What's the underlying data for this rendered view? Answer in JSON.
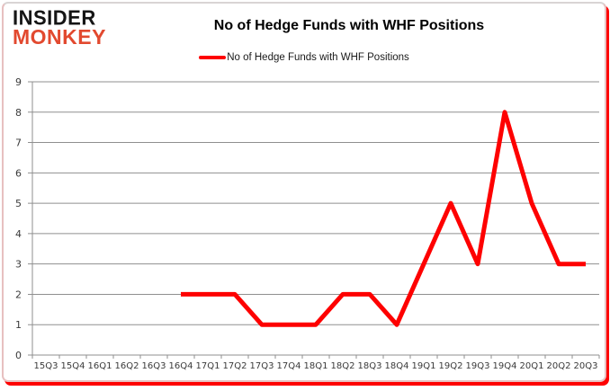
{
  "logo": {
    "line1": "INSIDER",
    "line2": "MONKEY",
    "accent_color": "#e2492f"
  },
  "header": {
    "title": "No of Hedge Funds with WHF Positions"
  },
  "legend": {
    "label": "No of Hedge Funds with WHF Positions",
    "swatch_color": "#fe0000"
  },
  "colors": {
    "series_red": "#fe0000",
    "grid_gray": "#8f8f8f",
    "frame_shadow_red": "#fe0000"
  },
  "chart_data": {
    "type": "line",
    "title": "No of Hedge Funds with WHF Positions",
    "xlabel": "",
    "ylabel": "",
    "categories": [
      "15Q3",
      "15Q4",
      "16Q1",
      "16Q2",
      "16Q3",
      "16Q4",
      "17Q1",
      "17Q2",
      "17Q3",
      "17Q4",
      "18Q1",
      "18Q2",
      "18Q3",
      "18Q4",
      "19Q1",
      "19Q2",
      "19Q3",
      "19Q4",
      "20Q1",
      "20Q2",
      "20Q3"
    ],
    "series": [
      {
        "name": "No of Hedge Funds with WHF Positions",
        "color": "#fe0000",
        "values": [
          null,
          null,
          null,
          null,
          null,
          2,
          2,
          2,
          1,
          1,
          1,
          2,
          2,
          1,
          3,
          5,
          3,
          8,
          5,
          3,
          3
        ]
      }
    ],
    "ylim": [
      0,
      9
    ],
    "yticks": [
      0,
      1,
      2,
      3,
      4,
      5,
      6,
      7,
      8,
      9
    ],
    "grid": true,
    "legend_position": "top-center"
  }
}
